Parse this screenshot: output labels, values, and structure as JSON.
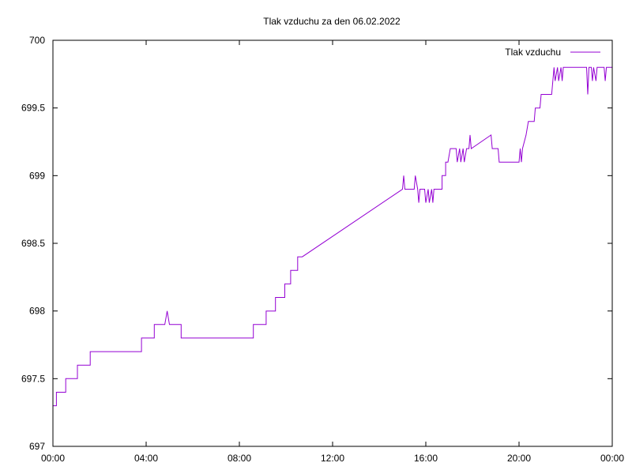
{
  "chart_data": {
    "type": "line",
    "title": "Tlak vzduchu za den 06.02.2022",
    "xlabel": "",
    "ylabel": "",
    "x_ticks": [
      "00:00",
      "04:00",
      "08:00",
      "12:00",
      "16:00",
      "20:00",
      "00:00"
    ],
    "x_range_hours": [
      0,
      24
    ],
    "y_ticks": [
      "697",
      "697.5",
      "698",
      "698.5",
      "699",
      "699.5",
      "700"
    ],
    "ylim": [
      697,
      700
    ],
    "grid": false,
    "legend_position": "top-right",
    "series": [
      {
        "name": "Tlak vzduchu",
        "color": "#9400d3",
        "points": [
          [
            0.0,
            697.3
          ],
          [
            0.15,
            697.3
          ],
          [
            0.15,
            697.4
          ],
          [
            0.55,
            697.4
          ],
          [
            0.55,
            697.5
          ],
          [
            1.05,
            697.5
          ],
          [
            1.05,
            697.6
          ],
          [
            1.6,
            697.6
          ],
          [
            1.6,
            697.7
          ],
          [
            3.8,
            697.7
          ],
          [
            3.8,
            697.8
          ],
          [
            4.35,
            697.8
          ],
          [
            4.35,
            697.9
          ],
          [
            4.8,
            697.9
          ],
          [
            4.9,
            698.0
          ],
          [
            5.0,
            697.9
          ],
          [
            5.5,
            697.9
          ],
          [
            5.5,
            697.8
          ],
          [
            8.6,
            697.8
          ],
          [
            8.6,
            697.9
          ],
          [
            9.15,
            697.9
          ],
          [
            9.15,
            698.0
          ],
          [
            9.55,
            698.0
          ],
          [
            9.55,
            698.1
          ],
          [
            9.95,
            698.1
          ],
          [
            9.95,
            698.2
          ],
          [
            10.2,
            698.2
          ],
          [
            10.2,
            698.3
          ],
          [
            10.5,
            698.3
          ],
          [
            10.5,
            698.4
          ],
          [
            10.7,
            698.4
          ],
          [
            15.0,
            698.9
          ],
          [
            15.05,
            699.0
          ],
          [
            15.1,
            698.9
          ],
          [
            15.5,
            698.9
          ],
          [
            15.55,
            699.0
          ],
          [
            15.65,
            698.9
          ],
          [
            15.7,
            698.8
          ],
          [
            15.75,
            698.9
          ],
          [
            15.95,
            698.9
          ],
          [
            16.0,
            698.8
          ],
          [
            16.1,
            698.9
          ],
          [
            16.15,
            698.8
          ],
          [
            16.25,
            698.9
          ],
          [
            16.3,
            698.8
          ],
          [
            16.35,
            698.9
          ],
          [
            16.7,
            698.9
          ],
          [
            16.7,
            699.0
          ],
          [
            16.85,
            699.0
          ],
          [
            16.85,
            699.1
          ],
          [
            16.95,
            699.1
          ],
          [
            17.05,
            699.2
          ],
          [
            17.3,
            699.2
          ],
          [
            17.35,
            699.1
          ],
          [
            17.45,
            699.2
          ],
          [
            17.5,
            699.1
          ],
          [
            17.6,
            699.2
          ],
          [
            17.65,
            699.1
          ],
          [
            17.75,
            699.2
          ],
          [
            17.85,
            699.2
          ],
          [
            17.9,
            699.3
          ],
          [
            17.95,
            699.2
          ],
          [
            18.8,
            699.3
          ],
          [
            18.85,
            699.2
          ],
          [
            19.1,
            699.2
          ],
          [
            19.15,
            699.1
          ],
          [
            20.0,
            699.1
          ],
          [
            20.05,
            699.2
          ],
          [
            20.1,
            699.1
          ],
          [
            20.15,
            699.2
          ],
          [
            20.3,
            699.3
          ],
          [
            20.4,
            699.4
          ],
          [
            20.65,
            699.4
          ],
          [
            20.7,
            699.5
          ],
          [
            20.9,
            699.5
          ],
          [
            20.95,
            699.6
          ],
          [
            21.4,
            699.6
          ],
          [
            21.45,
            699.7
          ],
          [
            21.5,
            699.8
          ],
          [
            21.55,
            699.7
          ],
          [
            21.65,
            699.8
          ],
          [
            21.7,
            699.7
          ],
          [
            21.8,
            699.8
          ],
          [
            21.85,
            699.7
          ],
          [
            21.9,
            699.8
          ],
          [
            22.2,
            699.8
          ],
          [
            22.3,
            699.8
          ],
          [
            22.9,
            699.8
          ],
          [
            22.95,
            699.6
          ],
          [
            23.0,
            699.8
          ],
          [
            23.1,
            699.8
          ],
          [
            23.15,
            699.7
          ],
          [
            23.2,
            699.8
          ],
          [
            23.3,
            699.7
          ],
          [
            23.35,
            699.8
          ],
          [
            23.65,
            699.8
          ],
          [
            23.7,
            699.7
          ],
          [
            23.75,
            699.8
          ],
          [
            24.0,
            699.8
          ]
        ]
      }
    ]
  }
}
